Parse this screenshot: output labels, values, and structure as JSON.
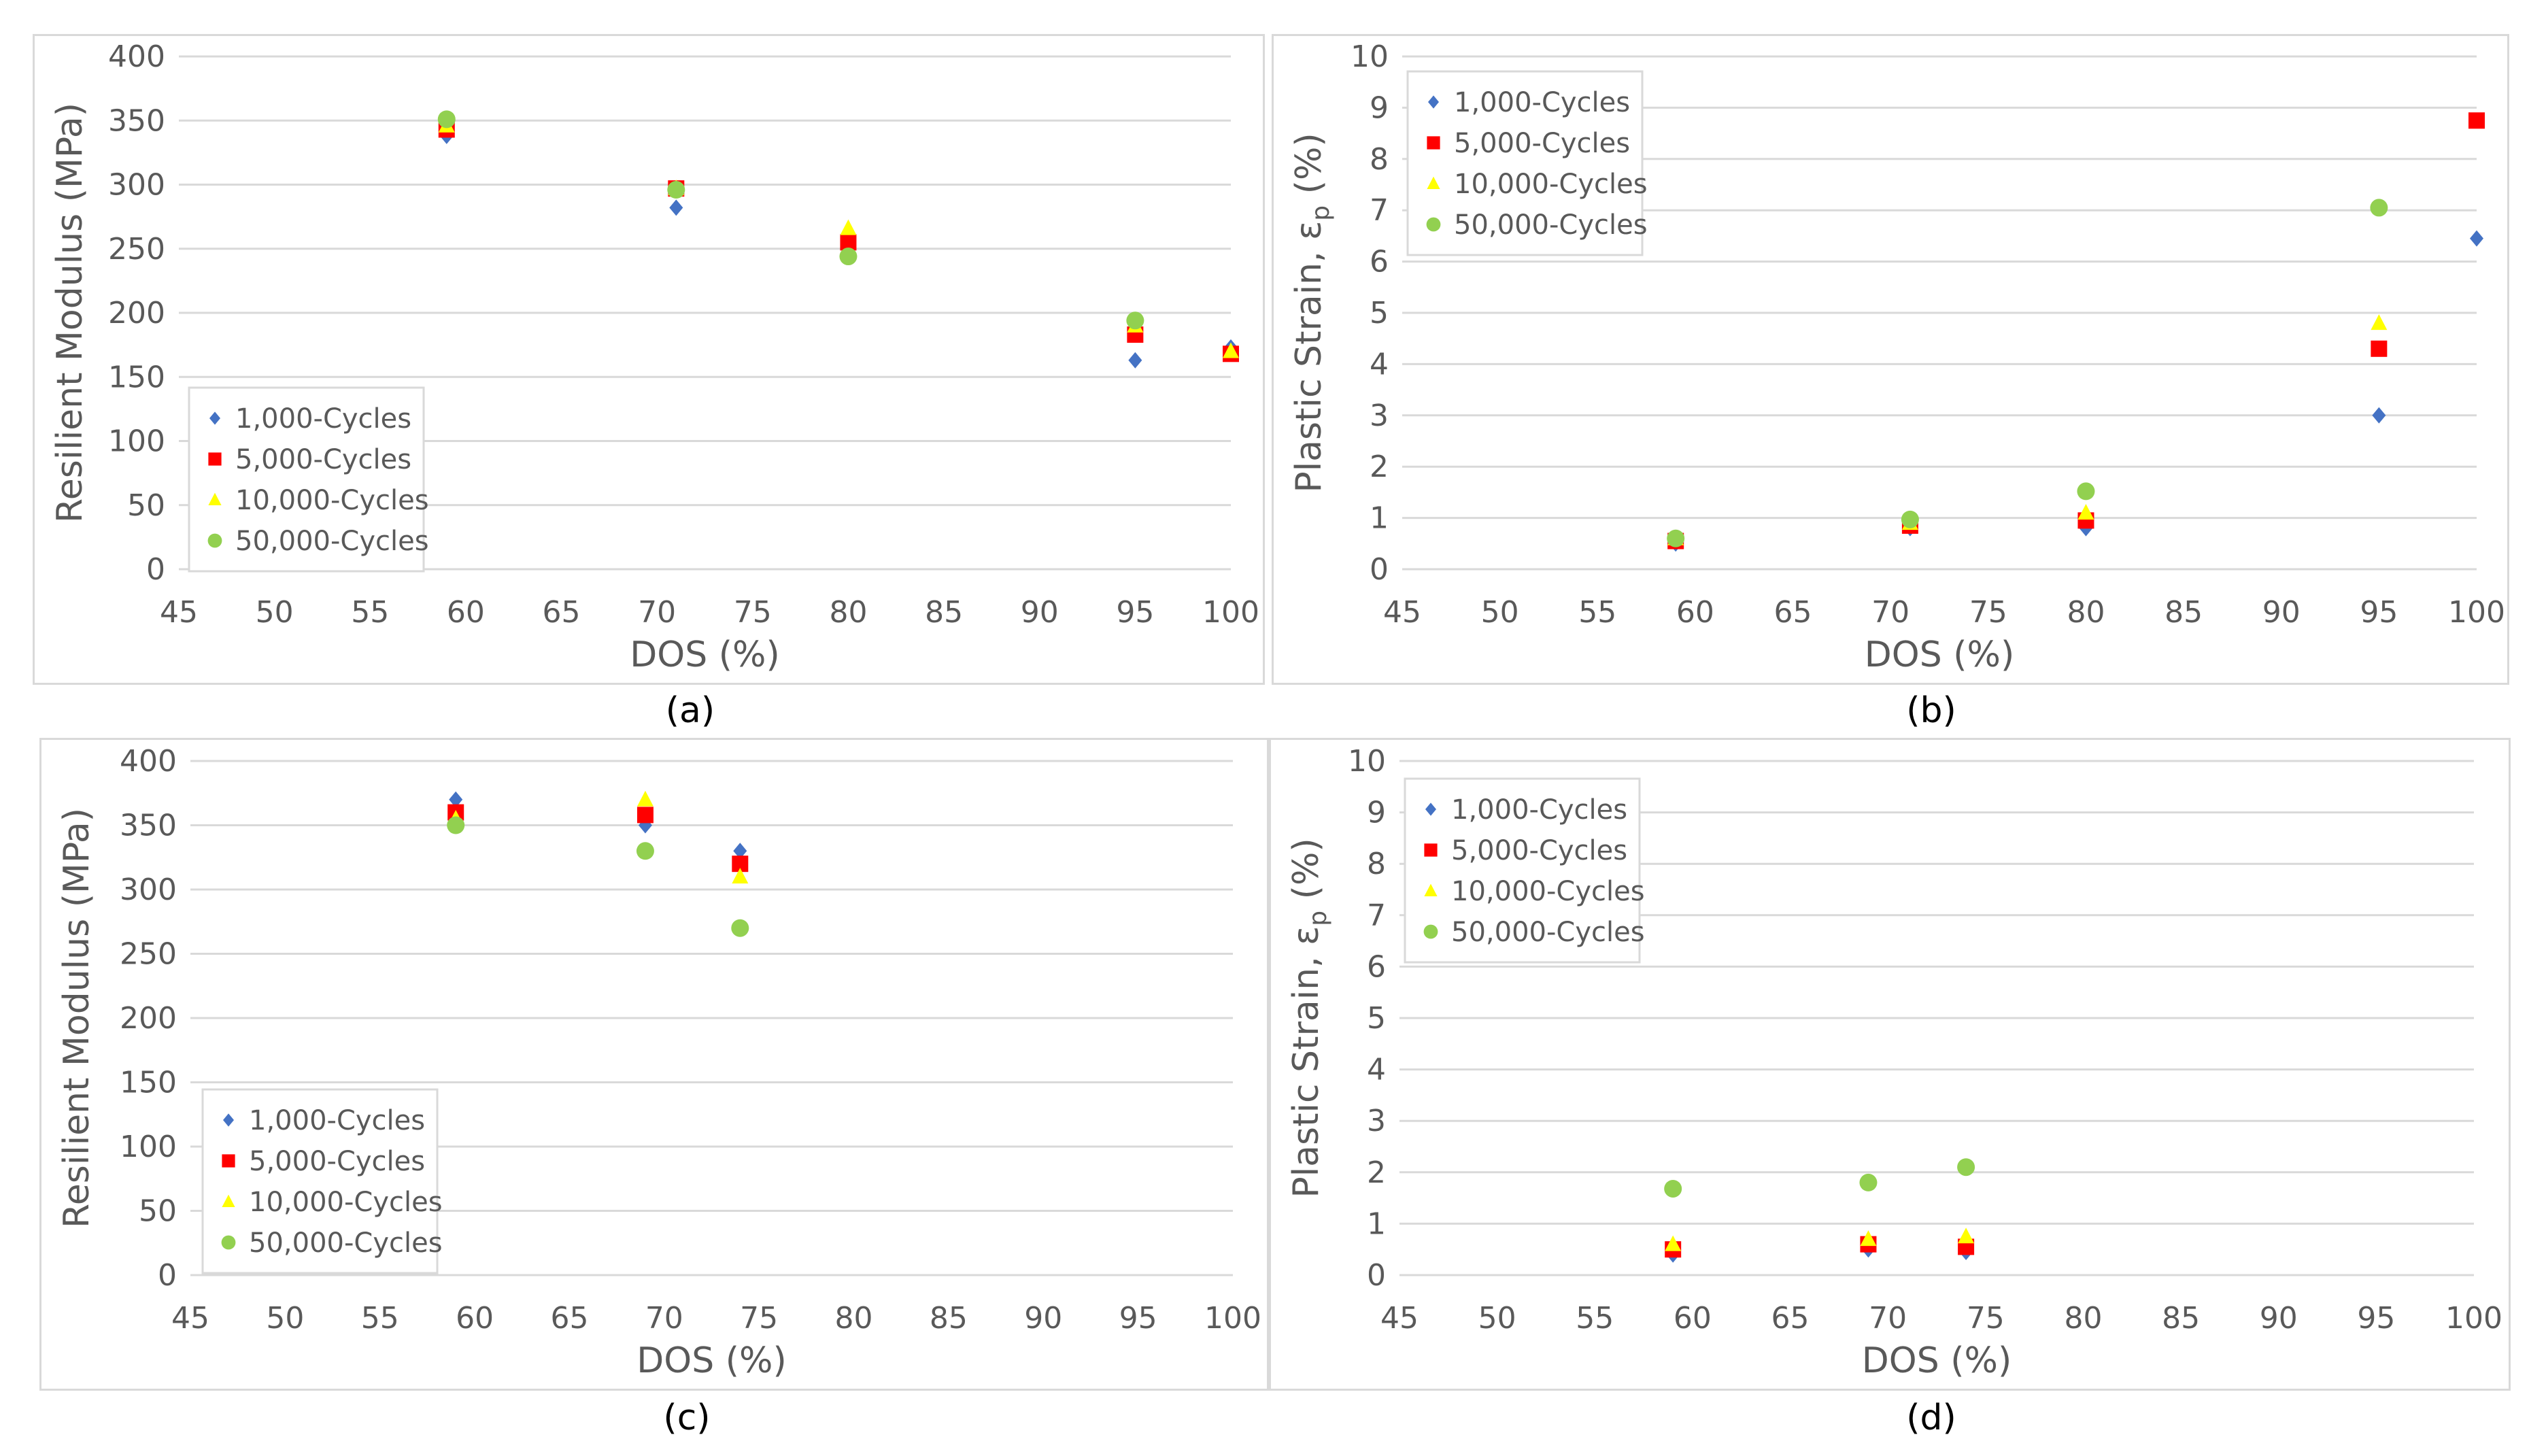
{
  "chart_data": [
    {
      "id": "a",
      "type": "scatter",
      "panel_label": "(a)",
      "title": "",
      "xlabel": "DOS (%)",
      "ylabel": "Resilient Modulus (MPa)",
      "xlim": [
        45,
        100
      ],
      "ylim": [
        0,
        400
      ],
      "xticks": [
        "45",
        "50",
        "55",
        "60",
        "65",
        "70",
        "75",
        "80",
        "85",
        "90",
        "95",
        "100"
      ],
      "yticks": [
        "0",
        "50",
        "100",
        "150",
        "200",
        "250",
        "300",
        "350",
        "400"
      ],
      "legend_position": "lower-left",
      "series": [
        {
          "name": "1,000-Cycles",
          "marker": "diamond",
          "color": "#4472C4",
          "x": [
            59,
            71,
            80,
            95,
            100
          ],
          "y": [
            338,
            282,
            257,
            163,
            173
          ]
        },
        {
          "name": "5,000-Cycles",
          "marker": "square",
          "color": "#FF0000",
          "x": [
            59,
            71,
            80,
            95,
            100
          ],
          "y": [
            343,
            297,
            255,
            183,
            168
          ]
        },
        {
          "name": "10,000-Cycles",
          "marker": "triangle",
          "color": "#FFFF00",
          "x": [
            59,
            71,
            80,
            95,
            100
          ],
          "y": [
            346,
            297,
            266,
            190,
            170
          ]
        },
        {
          "name": "50,000-Cycles",
          "marker": "circle",
          "color": "#92D050",
          "x": [
            59,
            71,
            80,
            95
          ],
          "y": [
            351,
            296,
            244,
            194
          ]
        }
      ]
    },
    {
      "id": "b",
      "type": "scatter",
      "panel_label": "(b)",
      "title": "",
      "xlabel": "DOS (%)",
      "ylabel": "Plastic Strain, εp (%)",
      "ylabel_main": "Plastic Strain, ε",
      "ylabel_sub": "p",
      "ylabel_tail": " (%)",
      "xlim": [
        45,
        100
      ],
      "ylim": [
        0,
        10
      ],
      "xticks": [
        "45",
        "50",
        "55",
        "60",
        "65",
        "70",
        "75",
        "80",
        "85",
        "90",
        "95",
        "100"
      ],
      "yticks": [
        "0",
        "1",
        "2",
        "3",
        "4",
        "5",
        "6",
        "7",
        "8",
        "9",
        "10"
      ],
      "legend_position": "top-left",
      "series": [
        {
          "name": "1,000-Cycles",
          "marker": "diamond",
          "color": "#4472C4",
          "x": [
            59,
            71,
            80,
            95,
            100
          ],
          "y": [
            0.5,
            0.8,
            0.8,
            3.0,
            6.45
          ]
        },
        {
          "name": "5,000-Cycles",
          "marker": "square",
          "color": "#FF0000",
          "x": [
            59,
            71,
            80,
            95,
            100
          ],
          "y": [
            0.55,
            0.85,
            0.95,
            4.3,
            8.75
          ]
        },
        {
          "name": "10,000-Cycles",
          "marker": "triangle",
          "color": "#FFFF00",
          "x": [
            59,
            71,
            80,
            95
          ],
          "y": [
            0.6,
            0.9,
            1.1,
            4.8
          ]
        },
        {
          "name": "50,000-Cycles",
          "marker": "circle",
          "color": "#92D050",
          "x": [
            59,
            71,
            80,
            95
          ],
          "y": [
            0.6,
            0.97,
            1.52,
            7.05
          ]
        }
      ]
    },
    {
      "id": "c",
      "type": "scatter",
      "panel_label": "(c)",
      "title": "",
      "xlabel": "DOS (%)",
      "ylabel": "Resilient Modulus (MPa)",
      "xlim": [
        45,
        100
      ],
      "ylim": [
        0,
        400
      ],
      "xticks": [
        "45",
        "50",
        "55",
        "60",
        "65",
        "70",
        "75",
        "80",
        "85",
        "90",
        "95",
        "100"
      ],
      "yticks": [
        "0",
        "50",
        "100",
        "150",
        "200",
        "250",
        "300",
        "350",
        "400"
      ],
      "legend_position": "lower-left",
      "series": [
        {
          "name": "1,000-Cycles",
          "marker": "diamond",
          "color": "#4472C4",
          "x": [
            59,
            69,
            74
          ],
          "y": [
            370,
            350,
            330
          ]
        },
        {
          "name": "5,000-Cycles",
          "marker": "square",
          "color": "#FF0000",
          "x": [
            59,
            69,
            74
          ],
          "y": [
            360,
            358,
            320
          ]
        },
        {
          "name": "10,000-Cycles",
          "marker": "triangle",
          "color": "#FFFF00",
          "x": [
            59,
            69,
            74
          ],
          "y": [
            355,
            370,
            310
          ]
        },
        {
          "name": "50,000-Cycles",
          "marker": "circle",
          "color": "#92D050",
          "x": [
            59,
            69,
            74
          ],
          "y": [
            350,
            330,
            270
          ]
        }
      ]
    },
    {
      "id": "d",
      "type": "scatter",
      "panel_label": "(d)",
      "title": "",
      "xlabel": "DOS (%)",
      "ylabel": "Plastic Strain, εp (%)",
      "ylabel_main": "Plastic Strain, ε",
      "ylabel_sub": "p",
      "ylabel_tail": " (%)",
      "xlim": [
        45,
        100
      ],
      "ylim": [
        0,
        10
      ],
      "xticks": [
        "45",
        "50",
        "55",
        "60",
        "65",
        "70",
        "75",
        "80",
        "85",
        "90",
        "95",
        "100"
      ],
      "yticks": [
        "0",
        "1",
        "2",
        "3",
        "4",
        "5",
        "6",
        "7",
        "8",
        "9",
        "10"
      ],
      "legend_position": "top-left",
      "series": [
        {
          "name": "1,000-Cycles",
          "marker": "diamond",
          "color": "#4472C4",
          "x": [
            59,
            69,
            74
          ],
          "y": [
            0.4,
            0.5,
            0.45
          ]
        },
        {
          "name": "5,000-Cycles",
          "marker": "square",
          "color": "#FF0000",
          "x": [
            59,
            69,
            74
          ],
          "y": [
            0.5,
            0.6,
            0.55
          ]
        },
        {
          "name": "10,000-Cycles",
          "marker": "triangle",
          "color": "#FFFF00",
          "x": [
            59,
            69,
            74
          ],
          "y": [
            0.6,
            0.7,
            0.75
          ]
        },
        {
          "name": "50,000-Cycles",
          "marker": "circle",
          "color": "#92D050",
          "x": [
            59,
            69,
            74
          ],
          "y": [
            1.68,
            1.8,
            2.1
          ]
        }
      ]
    }
  ]
}
